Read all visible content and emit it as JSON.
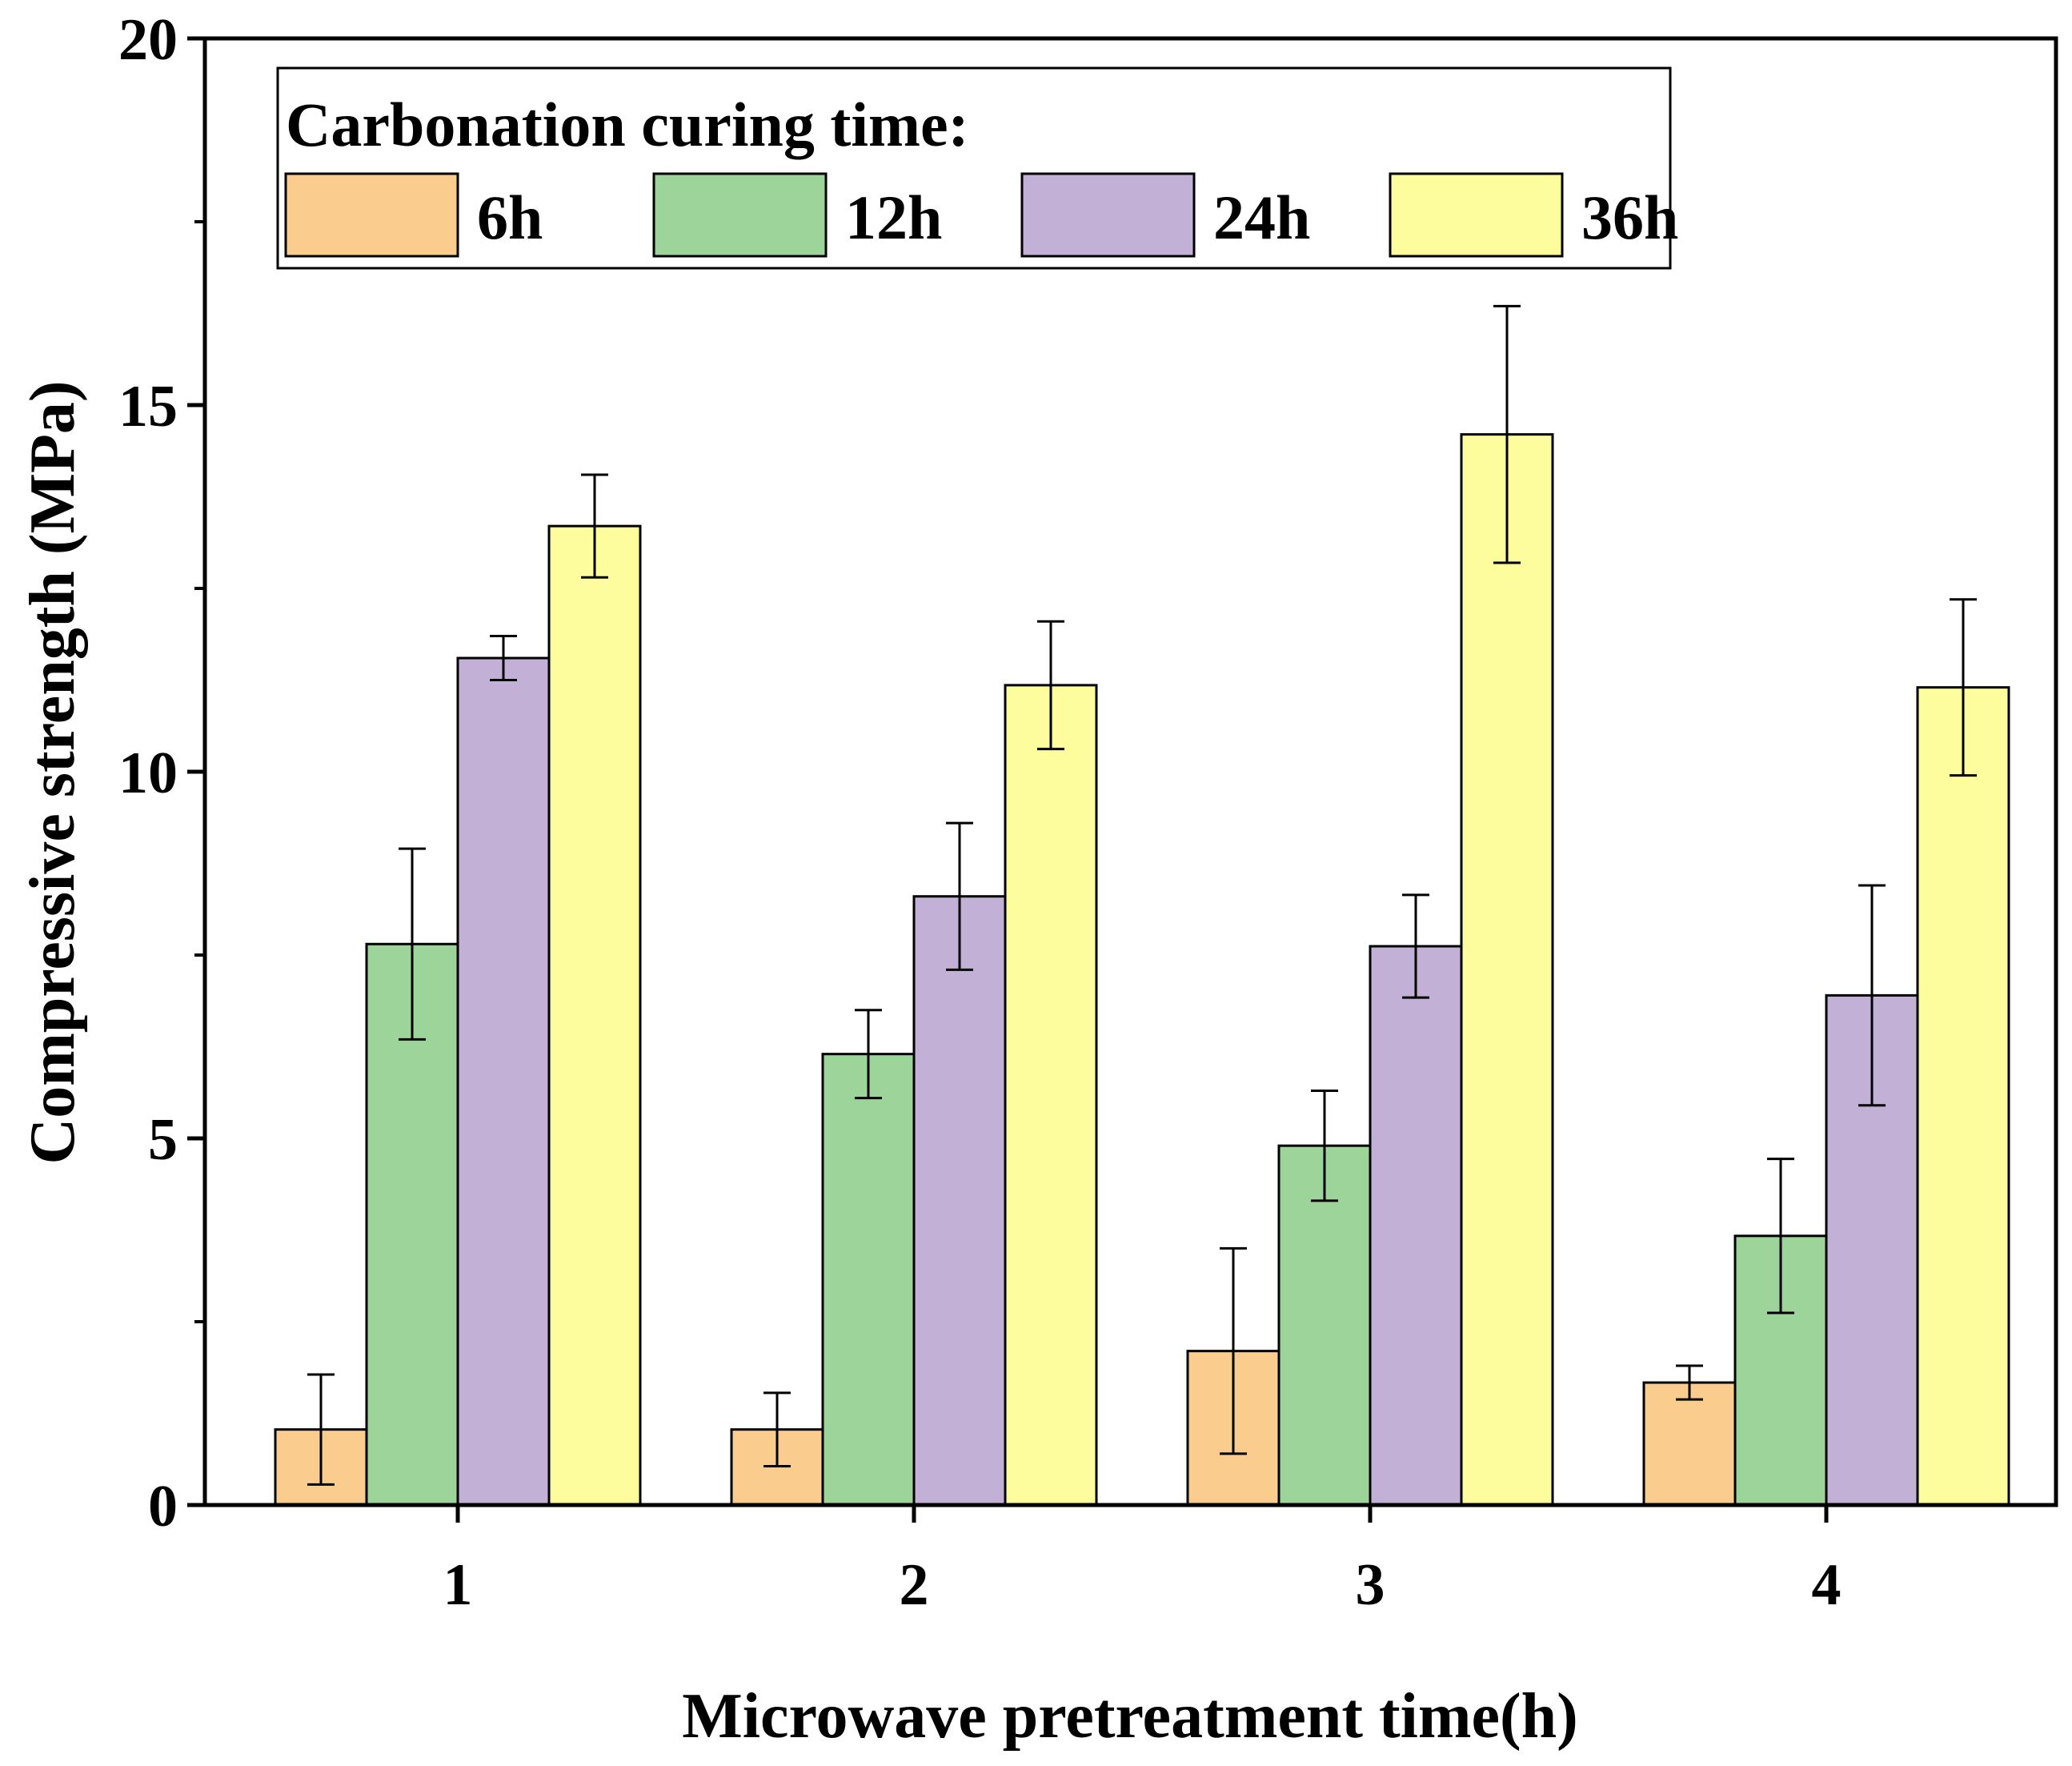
{
  "chart_data": {
    "type": "bar",
    "title": "",
    "xlabel": "Microwave pretreatment time(h)",
    "ylabel": "Compressive strength (MPa)",
    "categories": [
      "1",
      "2",
      "3",
      "4"
    ],
    "ylim": [
      0,
      20
    ],
    "yticks": [
      "0",
      "5",
      "10",
      "15",
      "20"
    ],
    "grid": false,
    "legend": {
      "title": "Carbonation curing time:",
      "placement": "top-left",
      "layout": "horizontal"
    },
    "series": [
      {
        "name": "6h",
        "color": "#FACC8E",
        "values": [
          1.03,
          1.03,
          2.1,
          1.67
        ],
        "errors": [
          0.75,
          0.5,
          1.4,
          0.23
        ]
      },
      {
        "name": "12h",
        "color": "#9CD49A",
        "values": [
          7.65,
          6.15,
          4.9,
          3.67
        ],
        "errors": [
          1.3,
          0.6,
          0.75,
          1.05
        ]
      },
      {
        "name": "24h",
        "color": "#C3B0D6",
        "values": [
          11.55,
          8.3,
          7.62,
          6.95
        ],
        "errors": [
          0.3,
          1.0,
          0.7,
          1.5
        ]
      },
      {
        "name": "36h",
        "color": "#FDFD9E",
        "values": [
          13.35,
          11.18,
          14.6,
          11.15
        ],
        "errors": [
          0.7,
          0.87,
          1.75,
          1.2
        ]
      }
    ]
  }
}
